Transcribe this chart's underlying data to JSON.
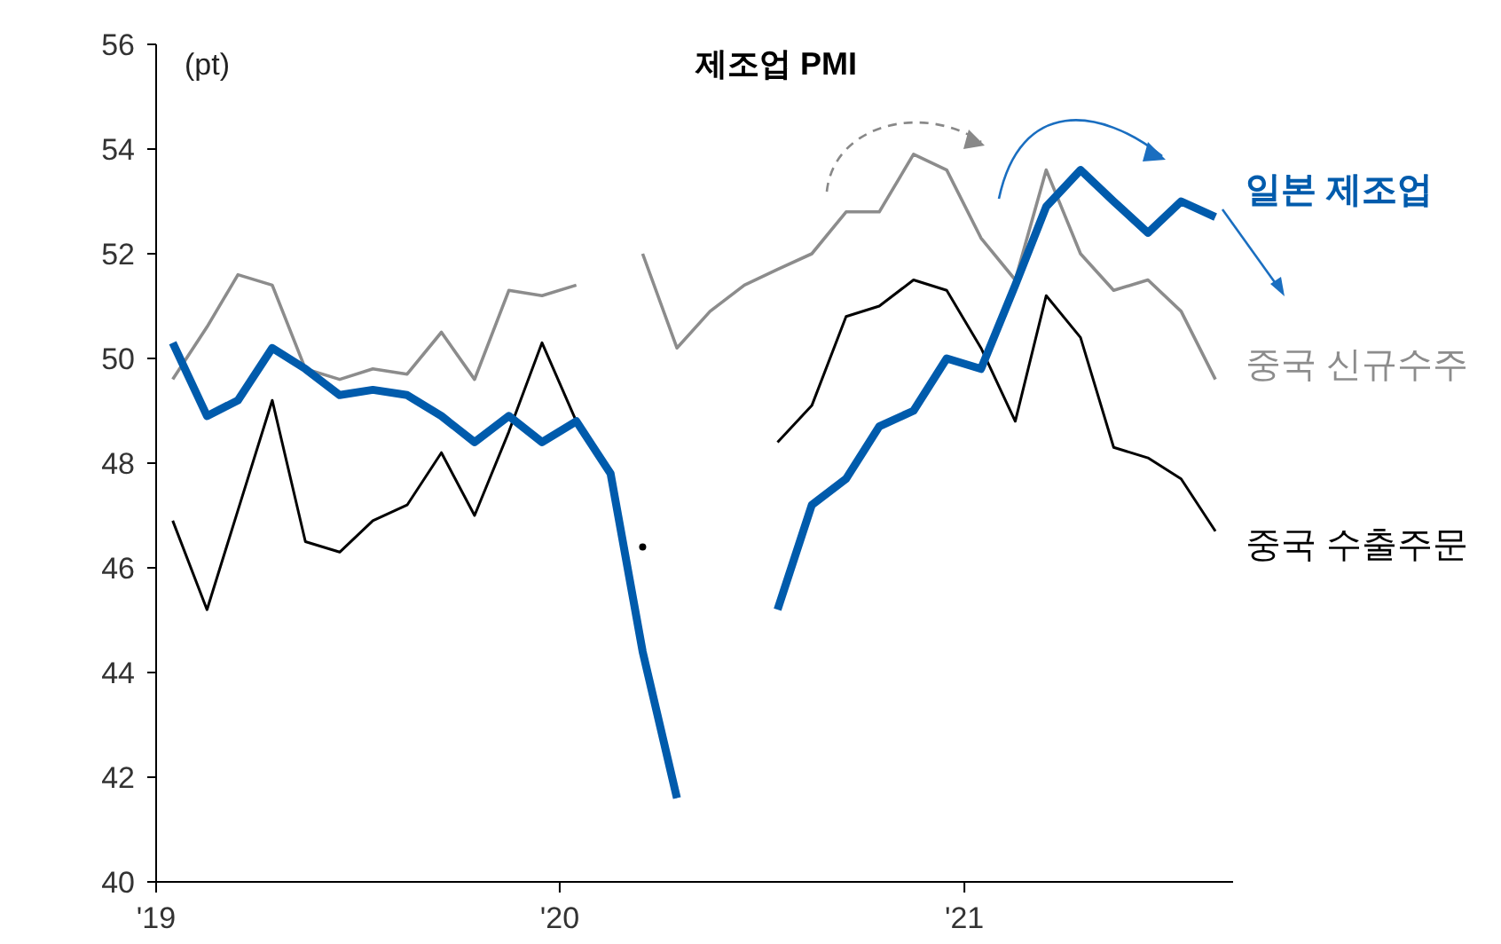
{
  "chart_data": {
    "type": "line",
    "title": "제조업 PMI",
    "ylabel": "(pt)",
    "x": [
      "2019-01-16",
      "2019-02-16",
      "2019-03-16",
      "2019-04-16",
      "2019-05-16",
      "2019-06-16",
      "2019-07-16",
      "2019-08-16",
      "2019-09-16",
      "2019-10-16",
      "2019-11-16",
      "2019-12-16",
      "2020-01-16",
      "2020-02-16",
      "2020-03-16",
      "2020-04-16",
      "2020-05-16",
      "2020-06-16",
      "2020-07-16",
      "2020-08-16",
      "2020-09-16",
      "2020-10-16",
      "2020-11-16",
      "2020-12-16",
      "2021-01-16",
      "2021-02-16",
      "2021-03-16",
      "2021-04-16",
      "2021-05-16",
      "2021-06-16",
      "2021-07-16",
      "2021-08-16"
    ],
    "series": [
      {
        "name": "중국 신규수주",
        "color": "#8c8c8c",
        "values": [
          49.6,
          50.6,
          51.6,
          51.4,
          49.8,
          49.6,
          49.8,
          49.7,
          50.5,
          49.6,
          51.3,
          51.2,
          51.4,
          null,
          52.0,
          50.2,
          50.9,
          51.4,
          51.7,
          52.0,
          52.8,
          52.8,
          53.9,
          53.6,
          52.3,
          51.5,
          53.6,
          52.0,
          51.3,
          51.5,
          50.9,
          49.6
        ]
      },
      {
        "name": "중국 수출주문",
        "color": "#000000",
        "values": [
          46.9,
          45.2,
          47.1,
          49.2,
          46.5,
          46.3,
          46.9,
          47.2,
          48.2,
          47.0,
          48.6,
          50.3,
          48.8,
          null,
          46.4,
          null,
          null,
          null,
          48.4,
          49.1,
          50.8,
          51.0,
          51.5,
          51.3,
          50.2,
          48.8,
          51.2,
          50.4,
          48.3,
          48.1,
          47.7,
          46.7
        ]
      },
      {
        "name": "일본 제조업",
        "color": "#005bac",
        "values": [
          50.3,
          48.9,
          49.2,
          50.2,
          49.8,
          49.3,
          49.4,
          49.3,
          48.9,
          48.4,
          48.9,
          48.4,
          48.8,
          47.8,
          44.4,
          41.6,
          null,
          null,
          45.2,
          47.2,
          47.7,
          48.7,
          49.0,
          50.0,
          49.8,
          51.4,
          52.9,
          53.6,
          53.0,
          52.4,
          53.0,
          52.7
        ]
      }
    ],
    "xlim": [
      "2019-01-01",
      "2021-09-01"
    ],
    "xticks": [
      {
        "value": "2019-01-01",
        "label": "'19"
      },
      {
        "value": "2020-01-01",
        "label": "'20"
      },
      {
        "value": "2021-01-01",
        "label": "'21"
      }
    ],
    "ylim": [
      40,
      56
    ],
    "yticks": [
      40,
      42,
      44,
      46,
      48,
      50,
      52,
      54,
      56
    ],
    "grid": false,
    "marker": "none",
    "line_style": "solid"
  }
}
